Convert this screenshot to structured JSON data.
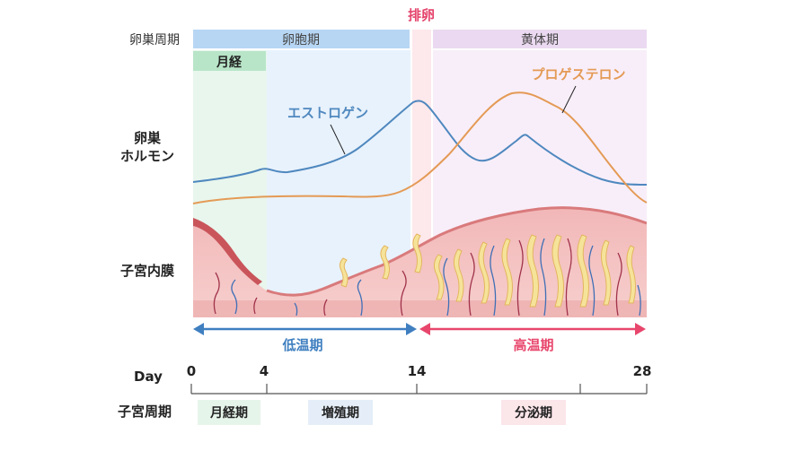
{
  "labels": {
    "ovarian_cycle": "卵巣周期",
    "follicular": "卵胞期",
    "ovulation": "排卵",
    "luteal": "黄体期",
    "menstruation": "月経",
    "ovarian_hormones_line1": "卵巣",
    "ovarian_hormones_line2": "ホルモン",
    "estrogen": "エストロゲン",
    "progesterone": "プロゲステロン",
    "endometrium": "子宮内膜",
    "low_temp": "低温期",
    "high_temp": "高温期",
    "day": "Day",
    "uterine_cycle": "子宮周期",
    "menstrual_phase": "月経期",
    "proliferative_phase": "増殖期",
    "secretory_phase": "分泌期"
  },
  "day_ticks": [
    "0",
    "4",
    "14",
    "28"
  ],
  "colors": {
    "follicular_band": "#b7d6f4",
    "luteal_band": "#ead9f0",
    "menstruation_band": "#b8e5c8",
    "ovulation_band": "#fbe3e6",
    "ovulation_text": "#e5436b",
    "estrogen": "#4f88bf",
    "progesterone": "#e49a55",
    "low_temp_arrow": "#3f7fc0",
    "high_temp_arrow": "#e8466c",
    "endometrium": "#eba9ab"
  }
}
